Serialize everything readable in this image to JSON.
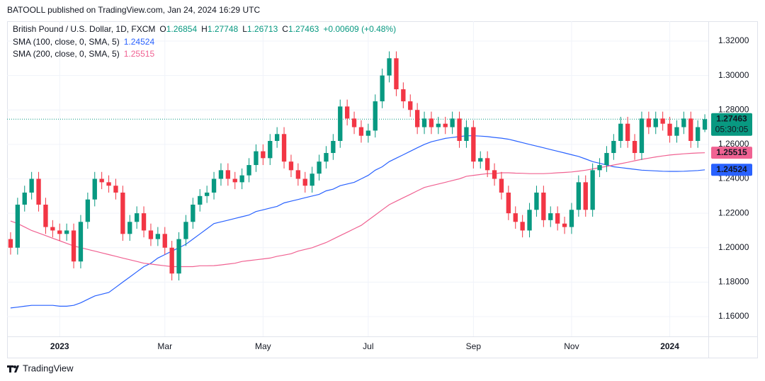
{
  "header": {
    "published": "BATOOLL published on TradingView.com, Jan 24, 2024 16:29 UTC"
  },
  "footer": {
    "brand": "TradingView"
  },
  "chart_data": {
    "type": "candlestick",
    "legend": {
      "symbol": "British Pound / U.S. Dollar, 1D, FXCM",
      "ohlc_labels": [
        "O",
        "H",
        "L",
        "C"
      ],
      "change": "+0.00609 (+0.48%)"
    },
    "countdown": "05:30:05",
    "categories": [
      null,
      null,
      null,
      null,
      null,
      null,
      null,
      "2023",
      null,
      null,
      null,
      null,
      null,
      null,
      null,
      null,
      null,
      null,
      null,
      null,
      null,
      null,
      "Mar",
      null,
      null,
      null,
      null,
      null,
      null,
      null,
      null,
      null,
      null,
      null,
      null,
      null,
      "May",
      null,
      null,
      null,
      null,
      null,
      null,
      null,
      null,
      null,
      null,
      null,
      null,
      null,
      null,
      "Jul",
      null,
      null,
      null,
      null,
      null,
      null,
      null,
      null,
      null,
      null,
      null,
      null,
      null,
      null,
      "Sep",
      null,
      null,
      null,
      null,
      null,
      null,
      null,
      null,
      null,
      null,
      null,
      null,
      null,
      "Nov",
      null,
      null,
      null,
      null,
      null,
      null,
      null,
      null,
      null,
      null,
      null,
      null,
      null,
      "2024",
      null,
      null,
      null,
      null,
      null
    ],
    "open": [
      1.205,
      1.2,
      1.225,
      1.232,
      1.24,
      1.225,
      1.212,
      1.21,
      1.208,
      1.21,
      1.192,
      1.215,
      1.228,
      1.24,
      1.238,
      1.236,
      1.232,
      1.208,
      1.215,
      1.22,
      1.21,
      1.205,
      1.208,
      1.2,
      1.185,
      1.205,
      1.215,
      1.225,
      1.23,
      1.232,
      1.24,
      1.245,
      1.24,
      1.238,
      1.242,
      1.248,
      1.256,
      1.252,
      1.262,
      1.266,
      1.25,
      1.245,
      1.24,
      1.236,
      1.243,
      1.25,
      1.255,
      1.262,
      1.282,
      1.275,
      1.27,
      1.265,
      1.268,
      1.285,
      1.3,
      1.31,
      1.292,
      1.285,
      1.28,
      1.27,
      1.275,
      1.27,
      1.272,
      1.27,
      1.275,
      1.262,
      1.27,
      1.25,
      1.252,
      1.245,
      1.24,
      1.232,
      1.22,
      1.215,
      1.21,
      1.222,
      1.232,
      1.216,
      1.22,
      1.214,
      1.212,
      1.222,
      1.238,
      1.222,
      1.245,
      1.248,
      1.255,
      1.262,
      1.272,
      1.262,
      1.255,
      1.275,
      1.27,
      1.275,
      1.272,
      1.265,
      1.27,
      1.275,
      1.262,
      1.26854
    ],
    "high": [
      1.209,
      1.229,
      1.236,
      1.244,
      1.244,
      1.229,
      1.216,
      1.214,
      1.214,
      1.214,
      1.219,
      1.232,
      1.244,
      1.244,
      1.242,
      1.24,
      1.236,
      1.219,
      1.224,
      1.224,
      1.214,
      1.212,
      1.212,
      1.204,
      1.209,
      1.219,
      1.229,
      1.234,
      1.236,
      1.244,
      1.249,
      1.249,
      1.244,
      1.246,
      1.252,
      1.26,
      1.26,
      1.266,
      1.27,
      1.27,
      1.254,
      1.249,
      1.244,
      1.247,
      1.254,
      1.259,
      1.266,
      1.286,
      1.286,
      1.279,
      1.274,
      1.272,
      1.289,
      1.304,
      1.314,
      1.314,
      1.296,
      1.289,
      1.284,
      1.279,
      1.279,
      1.276,
      1.276,
      1.279,
      1.279,
      1.274,
      1.274,
      1.256,
      1.256,
      1.249,
      1.244,
      1.236,
      1.224,
      1.219,
      1.226,
      1.236,
      1.236,
      1.224,
      1.224,
      1.218,
      1.226,
      1.242,
      1.242,
      1.249,
      1.252,
      1.259,
      1.266,
      1.276,
      1.276,
      1.266,
      1.279,
      1.279,
      1.279,
      1.279,
      1.276,
      1.274,
      1.279,
      1.279,
      1.274,
      1.27748
    ],
    "low": [
      1.196,
      1.196,
      1.221,
      1.228,
      1.221,
      1.208,
      1.206,
      1.204,
      1.204,
      1.188,
      1.188,
      1.211,
      1.224,
      1.234,
      1.232,
      1.228,
      1.204,
      1.204,
      1.211,
      1.206,
      1.201,
      1.201,
      1.196,
      1.181,
      1.181,
      1.201,
      1.211,
      1.221,
      1.226,
      1.228,
      1.236,
      1.236,
      1.234,
      1.234,
      1.238,
      1.244,
      1.248,
      1.248,
      1.258,
      1.246,
      1.241,
      1.236,
      1.232,
      1.232,
      1.239,
      1.246,
      1.251,
      1.258,
      1.271,
      1.266,
      1.261,
      1.261,
      1.264,
      1.281,
      1.296,
      1.288,
      1.281,
      1.276,
      1.266,
      1.266,
      1.266,
      1.266,
      1.266,
      1.266,
      1.258,
      1.258,
      1.246,
      1.246,
      1.241,
      1.236,
      1.228,
      1.216,
      1.211,
      1.206,
      1.206,
      1.218,
      1.212,
      1.212,
      1.21,
      1.208,
      1.208,
      1.218,
      1.218,
      1.218,
      1.241,
      1.244,
      1.251,
      1.258,
      1.258,
      1.251,
      1.251,
      1.266,
      1.266,
      1.268,
      1.261,
      1.261,
      1.266,
      1.258,
      1.258,
      1.26713
    ],
    "close": [
      1.2,
      1.225,
      1.232,
      1.24,
      1.225,
      1.212,
      1.21,
      1.208,
      1.21,
      1.192,
      1.215,
      1.228,
      1.24,
      1.238,
      1.236,
      1.232,
      1.208,
      1.215,
      1.22,
      1.21,
      1.205,
      1.208,
      1.2,
      1.185,
      1.205,
      1.215,
      1.225,
      1.23,
      1.232,
      1.24,
      1.245,
      1.24,
      1.238,
      1.242,
      1.248,
      1.256,
      1.252,
      1.262,
      1.266,
      1.25,
      1.245,
      1.24,
      1.236,
      1.243,
      1.25,
      1.255,
      1.262,
      1.282,
      1.275,
      1.27,
      1.265,
      1.268,
      1.285,
      1.3,
      1.31,
      1.292,
      1.285,
      1.28,
      1.27,
      1.275,
      1.27,
      1.272,
      1.27,
      1.275,
      1.262,
      1.27,
      1.25,
      1.252,
      1.245,
      1.24,
      1.232,
      1.22,
      1.215,
      1.21,
      1.222,
      1.232,
      1.216,
      1.22,
      1.214,
      1.212,
      1.222,
      1.238,
      1.222,
      1.245,
      1.248,
      1.255,
      1.262,
      1.272,
      1.262,
      1.255,
      1.275,
      1.27,
      1.275,
      1.272,
      1.265,
      1.27,
      1.275,
      1.262,
      1.27,
      1.27463
    ],
    "up_color": "#089981",
    "down_color": "#f23645",
    "series": [
      {
        "name": "SMA (100, close, 0, SMA, 5)",
        "color": "#2962ff",
        "values": [
          1.165,
          1.1655,
          1.166,
          1.1665,
          1.1665,
          1.1665,
          1.1665,
          1.166,
          1.166,
          1.1665,
          1.168,
          1.17,
          1.172,
          1.173,
          1.174,
          1.177,
          1.18,
          1.183,
          1.186,
          1.189,
          1.191,
          1.194,
          1.196,
          1.198,
          1.2,
          1.202,
          1.205,
          1.208,
          1.211,
          1.214,
          1.215,
          1.216,
          1.217,
          1.218,
          1.219,
          1.221,
          1.222,
          1.223,
          1.224,
          1.226,
          1.227,
          1.228,
          1.229,
          1.23,
          1.231,
          1.233,
          1.234,
          1.236,
          1.237,
          1.238,
          1.24,
          1.242,
          1.245,
          1.247,
          1.25,
          1.252,
          1.254,
          1.256,
          1.258,
          1.26,
          1.2615,
          1.2625,
          1.2635,
          1.264,
          1.2645,
          1.265,
          1.265,
          1.2648,
          1.2645,
          1.264,
          1.2636,
          1.263,
          1.262,
          1.261,
          1.26,
          1.259,
          1.258,
          1.257,
          1.256,
          1.255,
          1.254,
          1.253,
          1.2515,
          1.25,
          1.249,
          1.248,
          1.247,
          1.2465,
          1.246,
          1.2455,
          1.245,
          1.2448,
          1.2446,
          1.2444,
          1.2443,
          1.2443,
          1.2444,
          1.2446,
          1.2448,
          1.24524
        ]
      },
      {
        "name": "SMA (200, close, 0, SMA, 5)",
        "color": "#f06292",
        "values": [
          1.2155,
          1.214,
          1.212,
          1.21,
          1.2085,
          1.207,
          1.2055,
          1.204,
          1.2025,
          1.201,
          1.2,
          1.199,
          1.198,
          1.197,
          1.196,
          1.195,
          1.194,
          1.193,
          1.192,
          1.191,
          1.1905,
          1.19,
          1.1895,
          1.189,
          1.189,
          1.189,
          1.189,
          1.1895,
          1.1895,
          1.1896,
          1.19,
          1.1905,
          1.191,
          1.192,
          1.1925,
          1.193,
          1.1935,
          1.194,
          1.195,
          1.1957,
          1.1965,
          1.198,
          1.199,
          1.2,
          1.2015,
          1.203,
          1.205,
          1.207,
          1.209,
          1.211,
          1.213,
          1.216,
          1.219,
          1.222,
          1.225,
          1.227,
          1.229,
          1.231,
          1.233,
          1.235,
          1.236,
          1.237,
          1.238,
          1.239,
          1.24,
          1.2415,
          1.242,
          1.2425,
          1.243,
          1.243,
          1.2435,
          1.2435,
          1.2433,
          1.2432,
          1.243,
          1.243,
          1.243,
          1.2432,
          1.2435,
          1.2437,
          1.244,
          1.2445,
          1.245,
          1.2457,
          1.2465,
          1.2472,
          1.248,
          1.2488,
          1.2496,
          1.2505,
          1.2513,
          1.252,
          1.2527,
          1.2533,
          1.2538,
          1.2542,
          1.2545,
          1.2548,
          1.255,
          1.25515
        ]
      }
    ],
    "ylim": [
      1.1485,
      1.3315
    ],
    "yticks": [
      {
        "value": 1.16,
        "label": "1.16000"
      },
      {
        "value": 1.18,
        "label": "1.18000"
      },
      {
        "value": 1.2,
        "label": "1.20000"
      },
      {
        "value": 1.22,
        "label": "1.22000"
      },
      {
        "value": 1.24,
        "label": "1.24000"
      },
      {
        "value": 1.26,
        "label": "1.26000"
      },
      {
        "value": 1.28,
        "label": "1.28000"
      },
      {
        "value": 1.3,
        "label": "1.30000"
      },
      {
        "value": 1.32,
        "label": "1.32000"
      }
    ],
    "grid": true
  }
}
